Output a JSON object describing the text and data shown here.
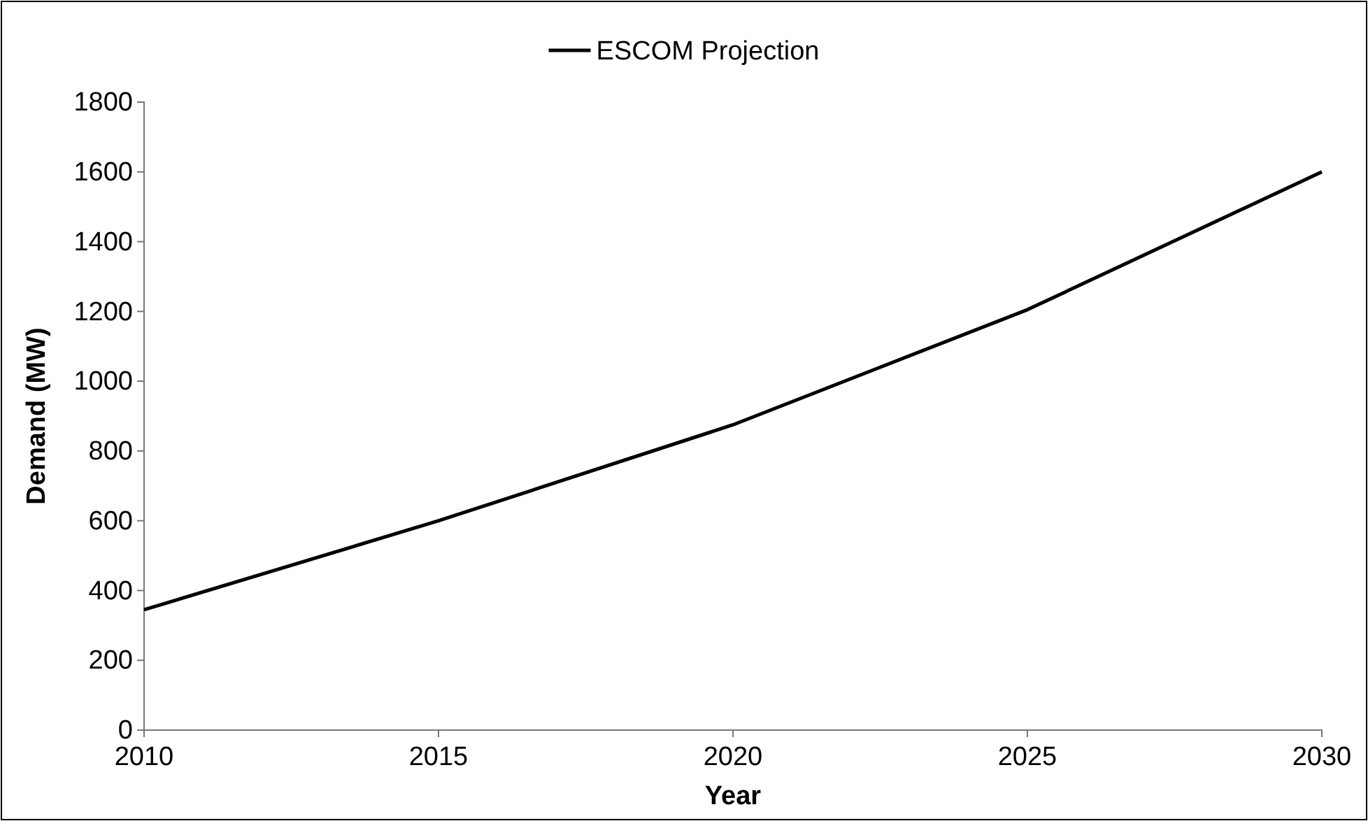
{
  "chart_data": {
    "type": "line",
    "xlabel": "Year",
    "ylabel": "Demand (MW)",
    "x": [
      2010,
      2015,
      2020,
      2025,
      2030
    ],
    "series": [
      {
        "name": "ESCOM Projection",
        "color": "#000000",
        "values": [
          345,
          600,
          875,
          1205,
          1600
        ]
      }
    ],
    "xlim": [
      2010,
      2030
    ],
    "xticks": [
      2010,
      2015,
      2020,
      2025,
      2030
    ],
    "ylim": [
      0,
      1800
    ],
    "yticks": [
      0,
      200,
      400,
      600,
      800,
      1000,
      1200,
      1400,
      1600,
      1800
    ],
    "grid": false,
    "legend": "top",
    "marker": "none",
    "line_style": "solid"
  }
}
